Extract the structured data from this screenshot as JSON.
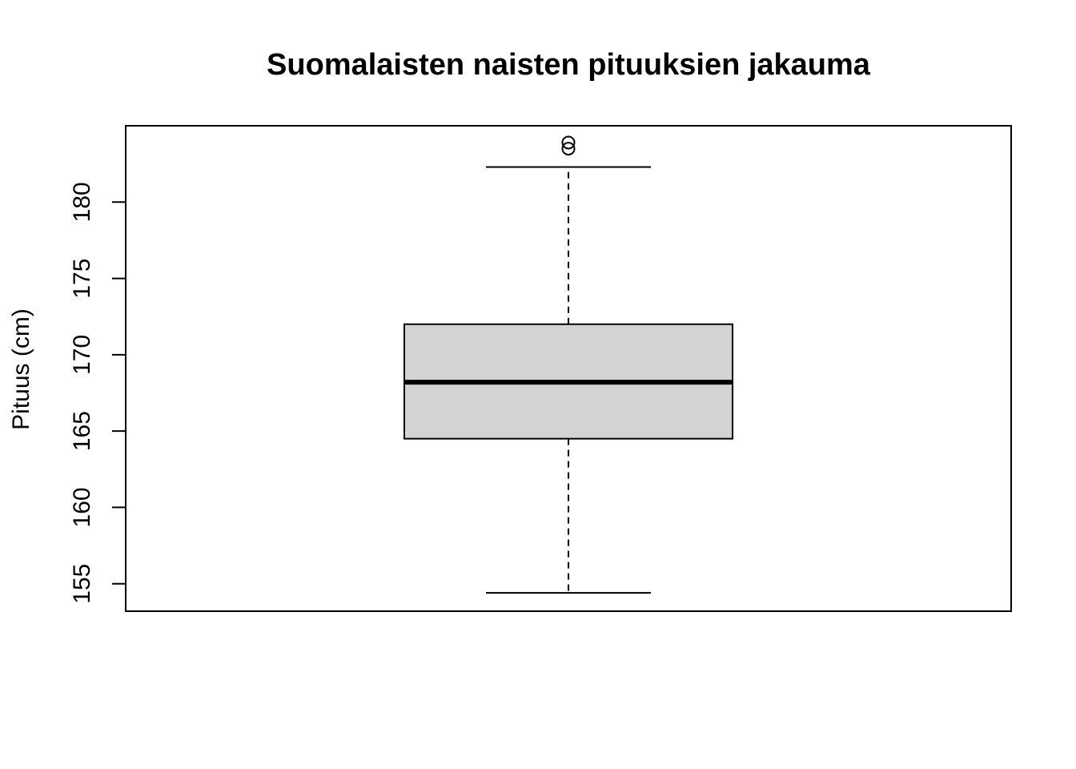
{
  "chart_data": {
    "type": "boxplot",
    "title": "Suomalaisten naisten pituuksien jakauma",
    "xlabel": "",
    "ylabel": "Pituus (cm)",
    "ylim": [
      153.2,
      185.0
    ],
    "yticks": [
      155,
      160,
      165,
      170,
      175,
      180
    ],
    "ytick_labels": [
      "155",
      "160",
      "165",
      "170",
      "175",
      "180"
    ],
    "grid": false,
    "boxes": [
      {
        "whisker_low": 154.4,
        "q1": 164.5,
        "median": 168.2,
        "q3": 172.0,
        "whisker_high": 182.3,
        "outliers": [
          183.5,
          183.9
        ],
        "fill": "#d3d3d3"
      }
    ]
  }
}
